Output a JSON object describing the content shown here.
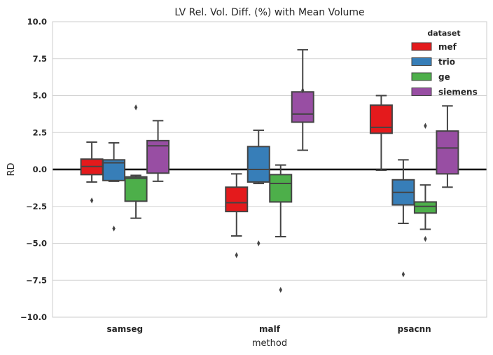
{
  "chart_data": {
    "type": "boxplot",
    "title": "LV Rel. Vol. Diff. (%) with Mean Volume",
    "xlabel": "method",
    "ylabel": "RD",
    "ylim": [
      -10,
      10
    ],
    "yticks": [
      10.0,
      7.5,
      5.0,
      2.5,
      0.0,
      -2.5,
      -5.0,
      -7.5,
      -10.0
    ],
    "ytick_labels": [
      "10.0",
      "7.5",
      "5.0",
      "2.5",
      "0.0",
      "−2.5",
      "−5.0",
      "−7.5",
      "−10.0"
    ],
    "categories": [
      "samseg",
      "malf",
      "psacnn"
    ],
    "reference_line": 0,
    "grid": "horizontal",
    "legend": {
      "title": "dataset",
      "position": "top-right",
      "entries": [
        "mef",
        "trio",
        "ge",
        "siemens"
      ]
    },
    "series": [
      {
        "name": "mef",
        "color": "#e41a1c",
        "boxes": [
          {
            "category": "samseg",
            "whisker_low": -0.85,
            "q1": -0.35,
            "median": 0.2,
            "q3": 0.7,
            "whisker_high": 1.85,
            "outliers": [
              -2.1
            ]
          },
          {
            "category": "malf",
            "whisker_low": -4.5,
            "q1": -2.85,
            "median": -2.25,
            "q3": -1.2,
            "whisker_high": -0.3,
            "outliers": [
              -5.8
            ]
          },
          {
            "category": "psacnn",
            "whisker_low": -0.05,
            "q1": 2.45,
            "median": 2.85,
            "q3": 4.35,
            "whisker_high": 5.0,
            "outliers": []
          }
        ]
      },
      {
        "name": "trio",
        "color": "#377eb8",
        "boxes": [
          {
            "category": "samseg",
            "whisker_low": -0.8,
            "q1": -0.75,
            "median": 0.45,
            "q3": 0.65,
            "whisker_high": 1.8,
            "outliers": [
              -4.0
            ]
          },
          {
            "category": "malf",
            "whisker_low": -0.95,
            "q1": -0.85,
            "median": 0.0,
            "q3": 1.55,
            "whisker_high": 2.65,
            "outliers": [
              -5.0
            ]
          },
          {
            "category": "psacnn",
            "whisker_low": -3.65,
            "q1": -2.4,
            "median": -1.55,
            "q3": -0.7,
            "whisker_high": 0.65,
            "outliers": [
              -7.1
            ]
          }
        ]
      },
      {
        "name": "ge",
        "color": "#4daf4a",
        "boxes": [
          {
            "category": "samseg",
            "whisker_low": -3.3,
            "q1": -2.15,
            "median": -0.6,
            "q3": -0.5,
            "whisker_high": -0.4,
            "outliers": [
              4.2
            ]
          },
          {
            "category": "malf",
            "whisker_low": -4.55,
            "q1": -2.2,
            "median": -0.95,
            "q3": -0.35,
            "whisker_high": 0.3,
            "outliers": [
              -8.15
            ]
          },
          {
            "category": "psacnn",
            "whisker_low": -4.05,
            "q1": -2.95,
            "median": -2.5,
            "q3": -2.2,
            "whisker_high": -1.05,
            "outliers": [
              2.95,
              -4.7
            ]
          }
        ]
      },
      {
        "name": "siemens",
        "color": "#984ea3",
        "boxes": [
          {
            "category": "samseg",
            "whisker_low": -0.8,
            "q1": -0.25,
            "median": 1.6,
            "q3": 1.95,
            "whisker_high": 3.3,
            "outliers": []
          },
          {
            "category": "malf",
            "whisker_low": 1.3,
            "q1": 3.2,
            "median": 3.75,
            "q3": 5.25,
            "whisker_high": 8.1,
            "outliers": [
              5.35
            ]
          },
          {
            "category": "psacnn",
            "whisker_low": -1.2,
            "q1": -0.3,
            "median": 1.45,
            "q3": 2.6,
            "whisker_high": 4.3,
            "outliers": []
          }
        ]
      }
    ]
  }
}
